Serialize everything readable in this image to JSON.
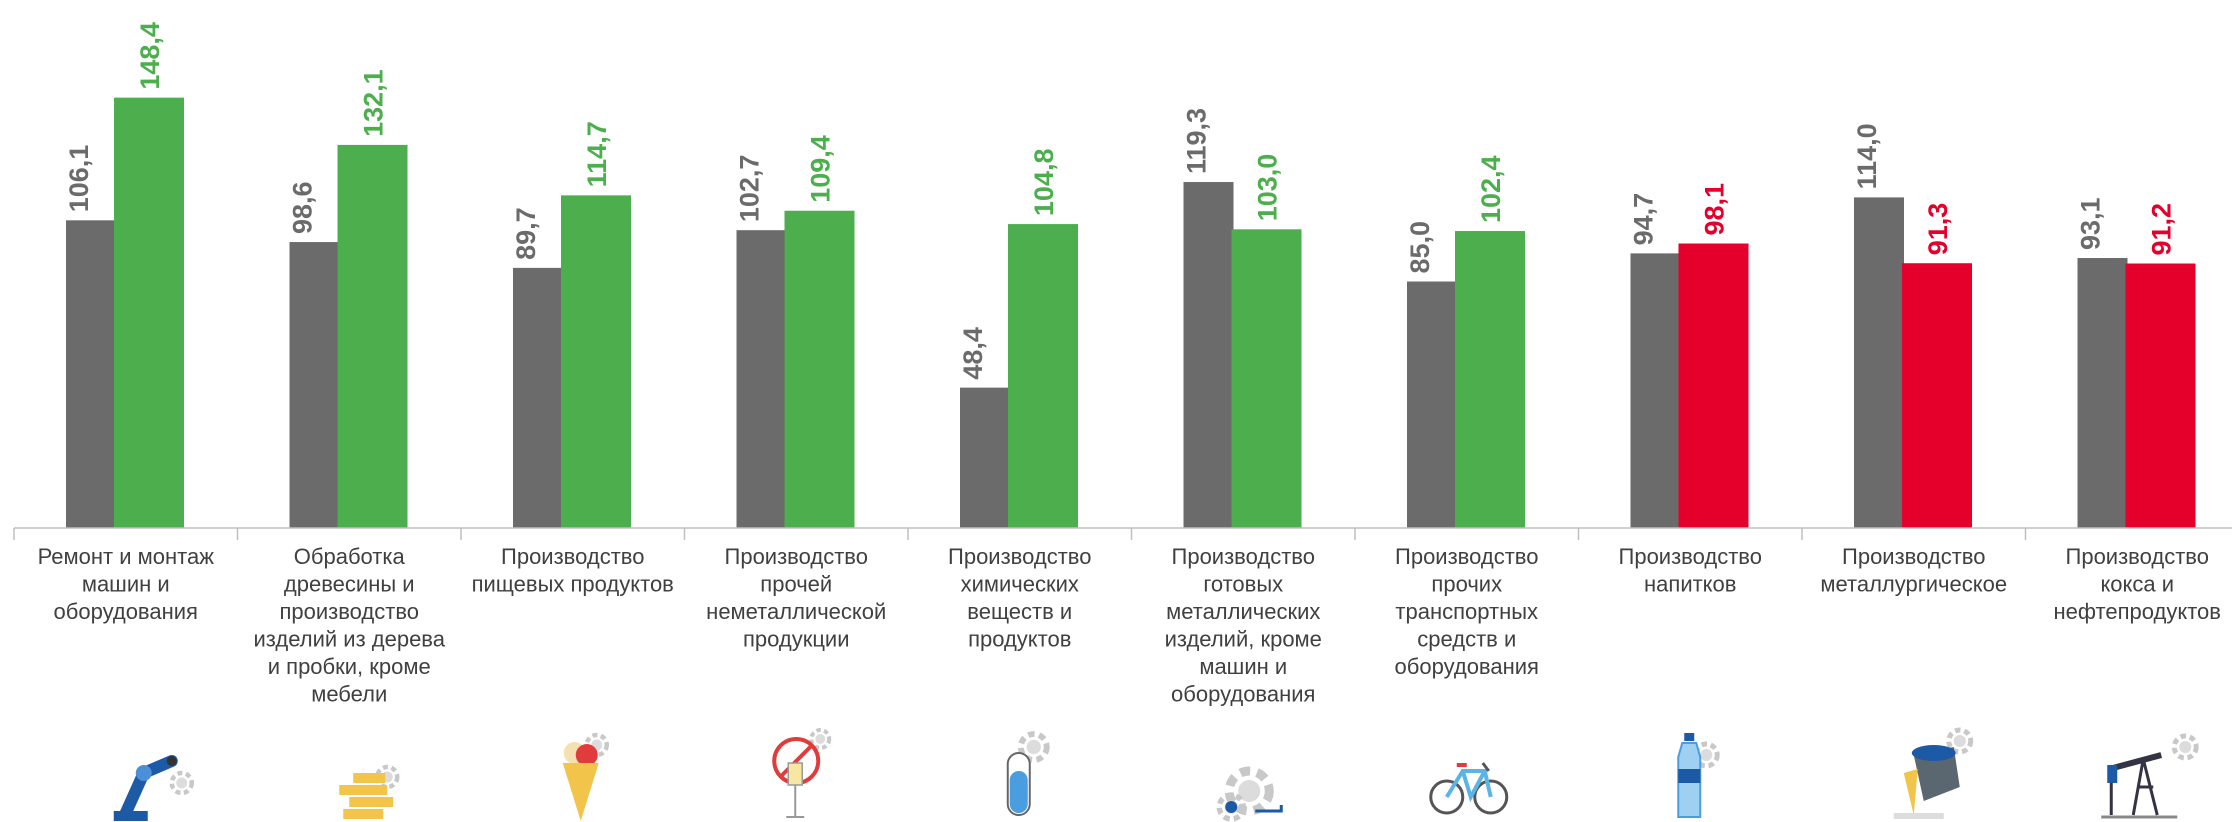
{
  "colors": {
    "prev": "#6b6b6b",
    "up": "#4cae4c",
    "down": "#e4002b",
    "axis": "#bfbfbf",
    "prev_label": "#6b6b6b"
  },
  "chart_data": {
    "type": "bar",
    "title": "",
    "xlabel": "",
    "ylabel": "",
    "ylim": [
      0,
      160
    ],
    "grid": false,
    "categories": [
      [
        "Ремонт и монтаж",
        "машин и",
        "оборудования"
      ],
      [
        "Обработка",
        "древесины и",
        "производство",
        "изделий из дерева",
        "и пробки, кроме",
        "мебели"
      ],
      [
        "Производство",
        "пищевых продуктов"
      ],
      [
        "Производство",
        "прочей",
        "неметаллической",
        "продукции"
      ],
      [
        "Производство",
        "химических",
        "веществ и",
        "продуктов"
      ],
      [
        "Производство",
        "готовых",
        "металлических",
        "изделий, кроме",
        "машин и",
        "оборудования"
      ],
      [
        "Производство",
        "прочих",
        "транспортных",
        "средств и",
        "оборудования"
      ],
      [
        "Производство",
        "напитков"
      ],
      [
        "Производство",
        "металлургическое"
      ],
      [
        "Производство",
        "кокса и",
        "нефтепродуктов"
      ]
    ],
    "series": [
      {
        "values": [
          106.1,
          98.6,
          89.7,
          102.7,
          48.4,
          119.3,
          85.0,
          94.7,
          114.0,
          93.1
        ],
        "labels": [
          "106,1",
          "98,6",
          "89,7",
          "102,7",
          "48,4",
          "119,3",
          "85,0",
          "94,7",
          "114,0",
          "93,1"
        ]
      },
      {
        "values": [
          148.4,
          132.1,
          114.7,
          109.4,
          104.8,
          103.0,
          102.4,
          98.1,
          91.3,
          91.2
        ],
        "labels": [
          "148,4",
          "132,1",
          "114,7",
          "109,4",
          "104,8",
          "103,0",
          "102,4",
          "98,1",
          "91,3",
          "91,2"
        ]
      }
    ],
    "icons": [
      "robot-arm-icon",
      "wood-planks-icon",
      "ice-cream-icon",
      "glass-icon",
      "test-tube-icon",
      "gears-icon",
      "bicycle-icon",
      "water-bottle-icon",
      "metal-ladle-icon",
      "oil-pump-icon"
    ]
  }
}
